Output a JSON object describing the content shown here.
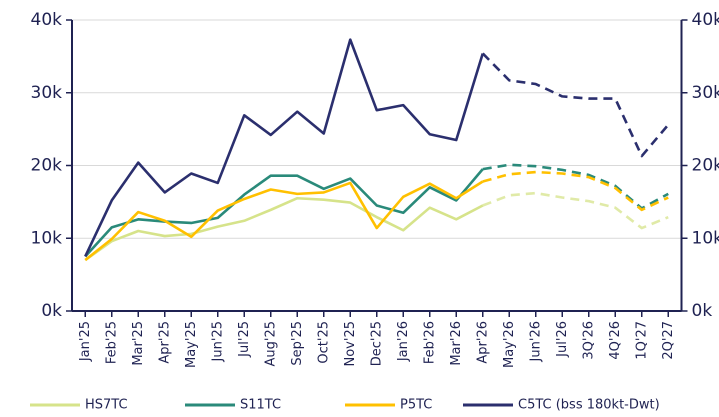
{
  "chart_data": {
    "type": "line",
    "categories": [
      "Jan'25",
      "Feb'25",
      "Mar'25",
      "Apr'25",
      "May'25",
      "Jun'25",
      "Jul'25",
      "Aug'25",
      "Sep'25",
      "Oct'25",
      "Nov'25",
      "Dec'25",
      "Jan'26",
      "Feb'26",
      "Mar'26",
      "Apr'26",
      "May'26",
      "Jun'26",
      "Jul'26",
      "3Q'26",
      "4Q'26",
      "1Q'27",
      "2Q'27"
    ],
    "dashed_from": "Apr'26",
    "series": [
      {
        "name": "HS7TC",
        "color": "#d6e38a",
        "values": [
          7.0,
          9.6,
          11.0,
          10.3,
          10.6,
          11.6,
          12.4,
          13.9,
          15.5,
          15.3,
          14.9,
          12.9,
          11.1,
          14.2,
          12.6,
          14.5,
          15.9,
          16.2,
          15.6,
          15.1,
          14.2,
          11.4,
          12.9
        ]
      },
      {
        "name": "S11TC",
        "color": "#2a8a7a",
        "values": [
          7.5,
          11.5,
          12.6,
          12.3,
          12.1,
          12.8,
          16.0,
          18.6,
          18.6,
          16.8,
          18.2,
          14.5,
          13.5,
          17.0,
          15.2,
          19.5,
          20.1,
          19.9,
          19.4,
          18.7,
          17.2,
          14.1,
          16.1
        ]
      },
      {
        "name": "P5TC",
        "color": "#ffc000",
        "values": [
          7.0,
          9.9,
          13.6,
          12.4,
          10.2,
          13.8,
          15.4,
          16.7,
          16.1,
          16.3,
          17.6,
          11.4,
          15.7,
          17.5,
          15.5,
          17.8,
          18.8,
          19.1,
          18.9,
          18.4,
          16.9,
          13.9,
          15.6
        ]
      },
      {
        "name": "C5TC (bss 180kt-Dwt)",
        "color": "#2b2f6e",
        "values": [
          7.5,
          15.2,
          20.4,
          16.3,
          18.9,
          17.6,
          26.9,
          24.2,
          27.4,
          24.4,
          37.3,
          27.6,
          28.3,
          24.3,
          23.5,
          35.4,
          31.7,
          31.2,
          29.5,
          29.2,
          29.2,
          21.3,
          25.6
        ]
      }
    ],
    "ylim": [
      0,
      40
    ],
    "yticks": [
      {
        "value": 0,
        "label": "0k"
      },
      {
        "value": 10,
        "label": "10k"
      },
      {
        "value": 20,
        "label": "20k"
      },
      {
        "value": 30,
        "label": "30k"
      },
      {
        "value": 40,
        "label": "40k"
      }
    ],
    "y2lim": [
      0,
      40
    ],
    "y2ticks": [
      {
        "value": 0,
        "label": "0k"
      },
      {
        "value": 10,
        "label": "10k"
      },
      {
        "value": 20,
        "label": "20k"
      },
      {
        "value": 30,
        "label": "30k"
      },
      {
        "value": 40,
        "label": "40k"
      }
    ],
    "grid": true,
    "legend": "bottom"
  }
}
